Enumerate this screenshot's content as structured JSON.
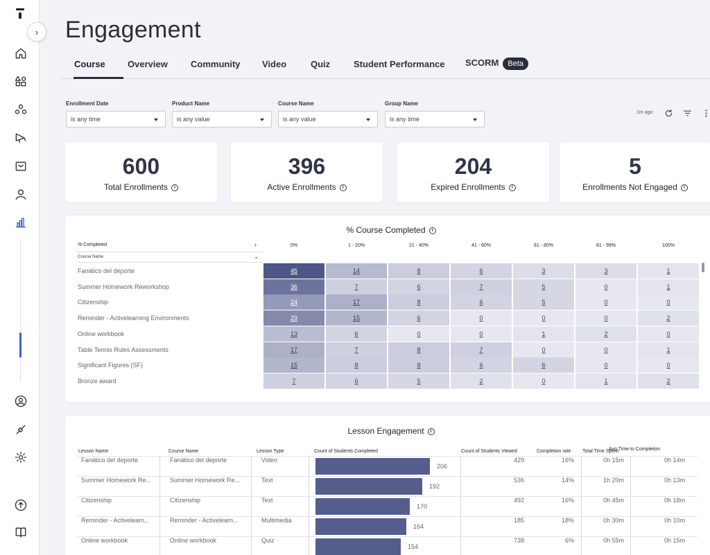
{
  "page": {
    "title": "Engagement"
  },
  "tabs": [
    {
      "label": "Course"
    },
    {
      "label": "Overview"
    },
    {
      "label": "Community"
    },
    {
      "label": "Video"
    },
    {
      "label": "Quiz"
    },
    {
      "label": "Student Performance"
    },
    {
      "label": "SCORM"
    }
  ],
  "beta_badge": "Beta",
  "filters": [
    {
      "label": "Enrollment Date",
      "value": "is any time"
    },
    {
      "label": "Product Name",
      "value": "is any value"
    },
    {
      "label": "Course Name",
      "value": "is any value"
    },
    {
      "label": "Group Name",
      "value": "is any time"
    }
  ],
  "toolbar": {
    "last_updated": "1m ago"
  },
  "kpis": [
    {
      "value": "600",
      "label": "Total Enrollments"
    },
    {
      "value": "396",
      "label": "Active Enrollments"
    },
    {
      "value": "204",
      "label": "Expired Enrollments"
    },
    {
      "value": "5",
      "label": "Enrollments Not Engaged"
    }
  ],
  "heatmap": {
    "title": "% Course Completed",
    "pivot_label": "% Completed",
    "row_header": "Course Name",
    "columns": [
      "0%",
      "1 - 20%",
      "21 - 40%",
      "41 - 60%",
      "61 - 80%",
      "81 - 99%",
      "100%"
    ],
    "rows": [
      {
        "course": "Fanático del deporte",
        "values": [
          45,
          14,
          8,
          6,
          3,
          3,
          1
        ]
      },
      {
        "course": "Summer Homework Reworkshop",
        "values": [
          36,
          7,
          6,
          7,
          5,
          0,
          1
        ]
      },
      {
        "course": "Citizenship",
        "values": [
          24,
          17,
          8,
          6,
          5,
          0,
          0
        ]
      },
      {
        "course": "Reminder - Activelearning Environments",
        "values": [
          29,
          15,
          6,
          0,
          0,
          0,
          2
        ]
      },
      {
        "course": "Online workbook",
        "values": [
          13,
          6,
          0,
          0,
          1,
          2,
          0
        ]
      },
      {
        "course": "Table Tennis Rules Assessments",
        "values": [
          17,
          7,
          8,
          7,
          0,
          0,
          1
        ]
      },
      {
        "course": "Significant Figures (SF)",
        "values": [
          15,
          8,
          8,
          6,
          6,
          0,
          0
        ]
      },
      {
        "course": "Bronze award",
        "values": [
          7,
          6,
          5,
          2,
          0,
          1,
          2
        ]
      }
    ]
  },
  "lesson": {
    "title": "Lesson Engagement",
    "headers": [
      "Lesson Name",
      "Course Name",
      "Lesson Type",
      "Count of Students Completed",
      "Count of Students Viewed",
      "Completion rate",
      "Total Time Spent",
      "Avg Time to Completion"
    ],
    "rows": [
      {
        "lesson": "Fanático del deporte",
        "course": "Fanático del deporte",
        "type": "Video",
        "completed": 206,
        "viewed": "429",
        "rate": "16%",
        "total": "0h 15m",
        "avg": "0h 14m"
      },
      {
        "lesson": "Summer Homework Re...",
        "course": "Summer Homework Re...",
        "type": "Text",
        "completed": 192,
        "viewed": "536",
        "rate": "14%",
        "total": "1h 20m",
        "avg": "0h 13m"
      },
      {
        "lesson": "Citizenship",
        "course": "Citizenship",
        "type": "Text",
        "completed": 170,
        "viewed": "492",
        "rate": "16%",
        "total": "0h 45m",
        "avg": "0h 18m"
      },
      {
        "lesson": "Reminder - Activelearn...",
        "course": "Reminder - Activelearn...",
        "type": "Multimedia",
        "completed": 164,
        "viewed": "185",
        "rate": "18%",
        "total": "0h 30m",
        "avg": "0h 10m"
      },
      {
        "lesson": "Online workbook",
        "course": "Online workbook",
        "type": "Quiz",
        "completed": 154,
        "viewed": "738",
        "rate": "6%",
        "total": "0h 55m",
        "avg": "0h 15m"
      }
    ]
  },
  "colors": {
    "accent": "#3d5fd1",
    "bar": "#555d8d",
    "heat_dark": "#4e5687",
    "heat_light": "#e6e7ef"
  }
}
